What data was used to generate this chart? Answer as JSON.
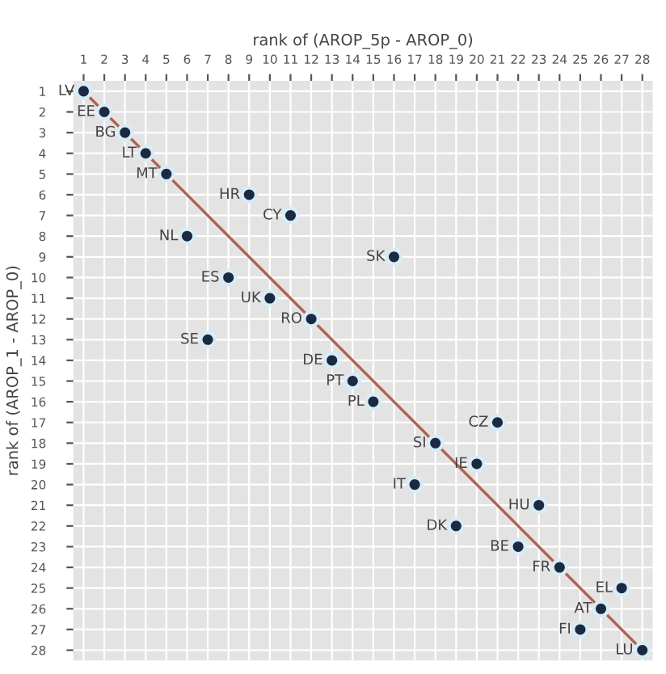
{
  "chart_data": {
    "type": "scatter",
    "xlabel": "rank of (AROP_5p - AROP_0)",
    "ylabel": "rank of (AROP_1 - AROP_0)",
    "series": [
      {
        "type": "line",
        "color": "#b0614c",
        "x": [
          1,
          28
        ],
        "values": [
          1,
          28
        ]
      },
      {
        "color": "#1b2a40",
        "x": [
          1,
          2,
          3,
          4,
          5,
          9,
          11,
          6,
          16,
          8,
          10,
          12,
          7,
          13,
          14,
          15,
          21,
          18,
          20,
          17,
          23,
          19,
          22,
          24,
          27,
          26,
          25,
          28
        ],
        "values": [
          1,
          2,
          3,
          4,
          5,
          6,
          7,
          8,
          9,
          10,
          11,
          12,
          13,
          14,
          15,
          16,
          17,
          18,
          19,
          20,
          21,
          22,
          23,
          24,
          25,
          26,
          27,
          28
        ]
      }
    ],
    "annotations": [
      {
        "text": "LV",
        "x": 1,
        "y": 1
      },
      {
        "text": "EE",
        "x": 2,
        "y": 2
      },
      {
        "text": "BG",
        "x": 3,
        "y": 3
      },
      {
        "text": "LT",
        "x": 4,
        "y": 4
      },
      {
        "text": "MT",
        "x": 5,
        "y": 5
      },
      {
        "text": "HR",
        "x": 9,
        "y": 6
      },
      {
        "text": "CY",
        "x": 11,
        "y": 7
      },
      {
        "text": "NL",
        "x": 6,
        "y": 8
      },
      {
        "text": "SK",
        "x": 16,
        "y": 9
      },
      {
        "text": "ES",
        "x": 8,
        "y": 10
      },
      {
        "text": "UK",
        "x": 10,
        "y": 11
      },
      {
        "text": "RO",
        "x": 12,
        "y": 12
      },
      {
        "text": "SE",
        "x": 7,
        "y": 13
      },
      {
        "text": "DE",
        "x": 13,
        "y": 14
      },
      {
        "text": "PT",
        "x": 14,
        "y": 15
      },
      {
        "text": "PL",
        "x": 15,
        "y": 16
      },
      {
        "text": "CZ",
        "x": 21,
        "y": 17
      },
      {
        "text": "SI",
        "x": 18,
        "y": 18
      },
      {
        "text": "IE",
        "x": 20,
        "y": 19
      },
      {
        "text": "IT",
        "x": 17,
        "y": 20
      },
      {
        "text": "HU",
        "x": 23,
        "y": 21
      },
      {
        "text": "DK",
        "x": 19,
        "y": 22
      },
      {
        "text": "BE",
        "x": 22,
        "y": 23
      },
      {
        "text": "FR",
        "x": 24,
        "y": 24
      },
      {
        "text": "EL",
        "x": 27,
        "y": 25
      },
      {
        "text": "AT",
        "x": 26,
        "y": 26
      },
      {
        "text": "FI",
        "x": 25,
        "y": 27
      },
      {
        "text": "LU",
        "x": 28,
        "y": 28
      }
    ],
    "xlim": [
      0.5,
      28.5
    ],
    "ylim": [
      28.5,
      0.5
    ],
    "xticks": [
      1,
      2,
      3,
      4,
      5,
      6,
      7,
      8,
      9,
      10,
      11,
      12,
      13,
      14,
      15,
      16,
      17,
      18,
      19,
      20,
      21,
      22,
      23,
      24,
      25,
      26,
      27,
      28
    ],
    "yticks": [
      1,
      2,
      3,
      4,
      5,
      6,
      7,
      8,
      9,
      10,
      11,
      12,
      13,
      14,
      15,
      16,
      17,
      18,
      19,
      20,
      21,
      22,
      23,
      24,
      25,
      26,
      27,
      28
    ],
    "grid": true,
    "marker": "circle"
  }
}
